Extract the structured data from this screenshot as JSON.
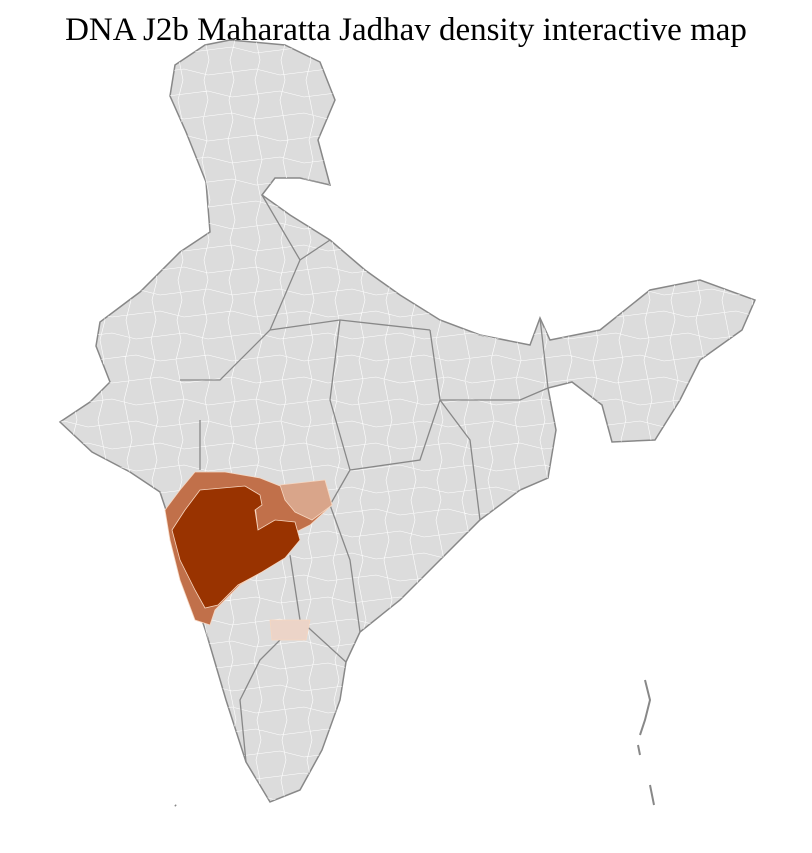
{
  "title": "DNA J2b Maharatta Jadhav density interactive map",
  "colors": {
    "land": "#dcdcdc",
    "district_border": "#ffffff",
    "state_border": "#888888",
    "density_high": "#993300",
    "density_medium": "#c1704a",
    "density_low": "#d9a58a",
    "density_very_low": "#ecd4c8"
  }
}
